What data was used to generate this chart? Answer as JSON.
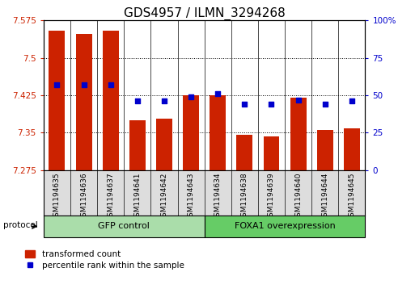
{
  "title": "GDS4957 / ILMN_3294268",
  "samples": [
    "GSM1194635",
    "GSM1194636",
    "GSM1194637",
    "GSM1194641",
    "GSM1194642",
    "GSM1194643",
    "GSM1194634",
    "GSM1194638",
    "GSM1194639",
    "GSM1194640",
    "GSM1194644",
    "GSM1194645"
  ],
  "transformed_counts": [
    7.555,
    7.548,
    7.555,
    7.375,
    7.378,
    7.425,
    7.425,
    7.345,
    7.342,
    7.42,
    7.355,
    7.358
  ],
  "percentile_ranks": [
    57,
    57,
    57,
    46,
    46,
    49,
    51,
    44,
    44,
    47,
    44,
    46
  ],
  "ylim_left": [
    7.275,
    7.575
  ],
  "ylim_right": [
    0,
    100
  ],
  "yticks_left": [
    7.275,
    7.35,
    7.425,
    7.5,
    7.575
  ],
  "yticks_right": [
    0,
    25,
    50,
    75,
    100
  ],
  "ytick_labels_right": [
    "0",
    "25",
    "50",
    "75",
    "100%"
  ],
  "bar_color": "#cc2200",
  "dot_color": "#0000cc",
  "group1_label": "GFP control",
  "group2_label": "FOXA1 overexpression",
  "group1_color": "#aaddaa",
  "group2_color": "#66cc66",
  "protocol_label": "protocol",
  "legend_transformed": "transformed count",
  "legend_percentile": "percentile rank within the sample",
  "n_group1": 6,
  "n_group2": 6,
  "bar_width": 0.6,
  "dot_size": 25,
  "title_fontsize": 11,
  "tick_fontsize": 7.5,
  "label_fontsize": 8,
  "grid_lines": [
    7.5,
    7.425,
    7.35
  ]
}
